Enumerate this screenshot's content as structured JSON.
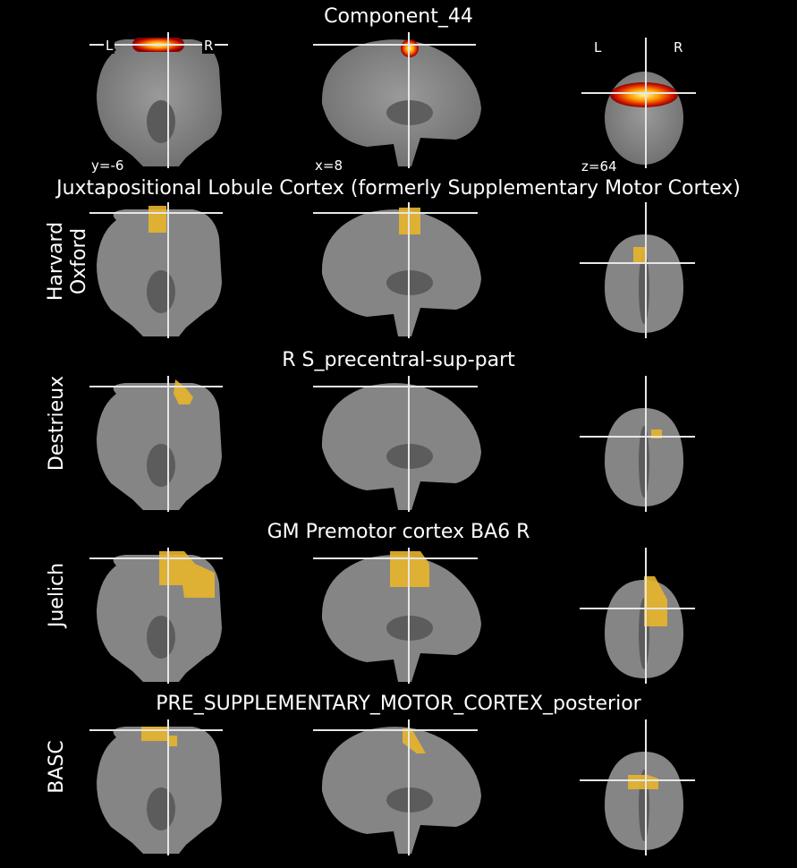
{
  "header": {
    "title": "Component_44",
    "left_marker": "L",
    "right_marker": "R",
    "coords": {
      "y": "y=-6",
      "x": "x=8",
      "z": "z=64"
    }
  },
  "rows": [
    {
      "label_lines": [
        "Harvard",
        "Oxford"
      ],
      "title": "Juxtapositional Lobule Cortex (formerly Supplementary Motor Cortex)"
    },
    {
      "label_lines": [
        "Destrieux"
      ],
      "title": "R S_precentral-sup-part"
    },
    {
      "label_lines": [
        "Juelich"
      ],
      "title": "GM Premotor cortex BA6 R"
    },
    {
      "label_lines": [
        "BASC"
      ],
      "title": "PRE_SUPPLEMENTARY_MOTOR_CORTEX_posterior"
    }
  ],
  "colors": {
    "background": "#000000",
    "brain": "#8a8a8a",
    "overlay_atlas": "#e8b52a",
    "heat_low": "#b71c00",
    "heat_high": "#ffff80",
    "crosshair": "#e6e6e6"
  }
}
